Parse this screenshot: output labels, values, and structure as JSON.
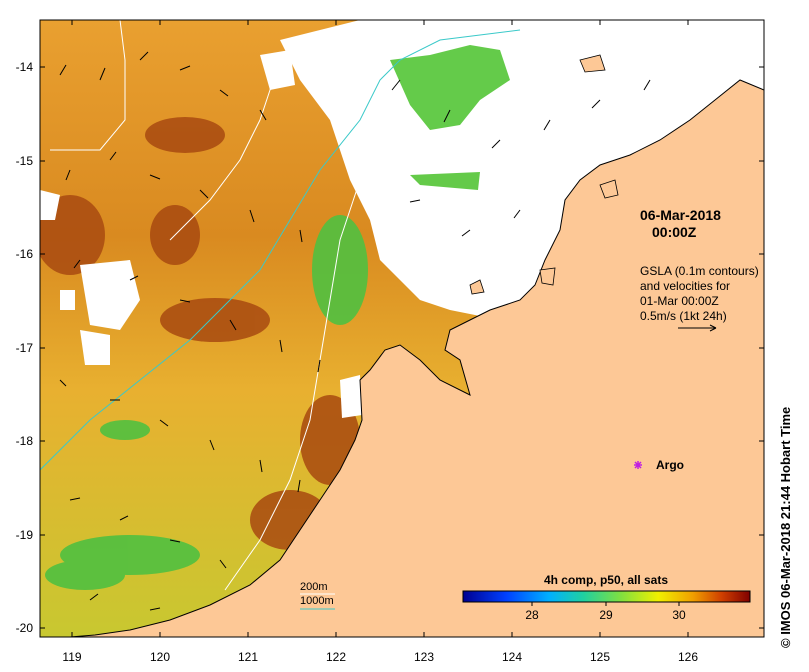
{
  "map": {
    "x_ticks": [
      "119",
      "120",
      "121",
      "122",
      "123",
      "124",
      "125",
      "126"
    ],
    "y_ticks": [
      "-14",
      "-15",
      "-16",
      "-17",
      "-18",
      "-19",
      "-20"
    ],
    "date_line1": "06-Mar-2018",
    "date_line2": "00:00Z",
    "gsla_lines": [
      "GSLA (0.1m contours)",
      "and velocities for",
      "01-Mar 00:00Z",
      "0.5m/s (1kt 24h)"
    ],
    "argo_label": "Argo",
    "contour_legend": {
      "label_200": "200m",
      "label_1000": "1000m"
    },
    "colorbar": {
      "title": "4h comp, p50, all sats",
      "ticks": [
        "28",
        "29",
        "30"
      ]
    },
    "credit": "© IMOS 06-Mar-2018 21:44 Hobart Time",
    "colors": {
      "land": "#fdc896",
      "contour_200": "#3ac9c9",
      "contour_1000": "#ffffff",
      "argo": "#c020e0"
    }
  }
}
